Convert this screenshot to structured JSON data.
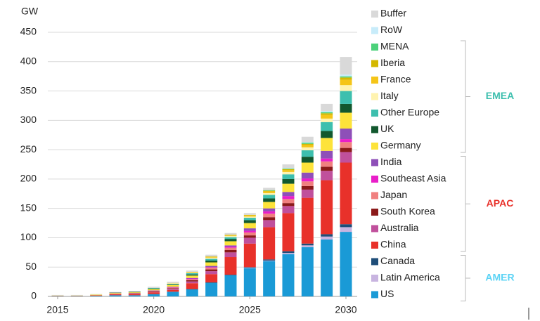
{
  "chart_data": {
    "type": "stacked_bar",
    "y_label": "GW",
    "x": [
      2015,
      2016,
      2017,
      2018,
      2019,
      2020,
      2021,
      2022,
      2023,
      2024,
      2025,
      2026,
      2027,
      2028,
      2029,
      2030
    ],
    "xticks": [
      2015,
      2020,
      2025,
      2030
    ],
    "ylim": [
      0,
      450
    ],
    "yticks": [
      0,
      50,
      100,
      150,
      200,
      250,
      300,
      350,
      400,
      450
    ],
    "grid": true,
    "series": [
      {
        "name": "US",
        "color": "#1a9ad6",
        "values": [
          0.5,
          0.5,
          1,
          2,
          2,
          4,
          8,
          12,
          23,
          36,
          48,
          60,
          72,
          84,
          97,
          110
        ]
      },
      {
        "name": "Latin America",
        "color": "#c8b4e0",
        "values": [
          0,
          0,
          0,
          0,
          0,
          0,
          0,
          0,
          0,
          0,
          1,
          1,
          2,
          3,
          5,
          8
        ]
      },
      {
        "name": "Canada",
        "color": "#1f4e79",
        "values": [
          0,
          0,
          0,
          0,
          0,
          0,
          0,
          0.5,
          1,
          1,
          1,
          2,
          3,
          3,
          4,
          5
        ]
      },
      {
        "name": "China",
        "color": "#e8312a",
        "values": [
          0.5,
          0.5,
          1,
          1.5,
          2,
          3,
          3,
          10,
          14,
          30,
          40,
          55,
          65,
          78,
          92,
          105
        ]
      },
      {
        "name": "Australia",
        "color": "#c0509c",
        "values": [
          0,
          0,
          0,
          0.5,
          1,
          1,
          2,
          3,
          5,
          8,
          10,
          12,
          12,
          14,
          16,
          18
        ]
      },
      {
        "name": "South Korea",
        "color": "#8b1a1a",
        "values": [
          0,
          0,
          0,
          0.5,
          0.5,
          1,
          1,
          2,
          3,
          4,
          4,
          5,
          5,
          6,
          7,
          7
        ]
      },
      {
        "name": "Japan",
        "color": "#f08080",
        "values": [
          0,
          0,
          0,
          0.5,
          0.5,
          1,
          1,
          2,
          3,
          4,
          5,
          6,
          7,
          8,
          9,
          10
        ]
      },
      {
        "name": "Southeast Asia",
        "color": "#e91ec9",
        "values": [
          0,
          0,
          0,
          0,
          0,
          0,
          0.5,
          1,
          1,
          2,
          3,
          4,
          5,
          5,
          5,
          5
        ]
      },
      {
        "name": "India",
        "color": "#8e4fb8",
        "values": [
          0,
          0,
          0,
          0,
          0,
          0.5,
          1,
          1,
          2,
          2,
          4,
          5,
          7,
          10,
          13,
          18
        ]
      },
      {
        "name": "Germany",
        "color": "#fde33a",
        "values": [
          0.5,
          0.5,
          1,
          1,
          1,
          2,
          3,
          4,
          6,
          7,
          9,
          11,
          14,
          17,
          22,
          27
        ]
      },
      {
        "name": "UK",
        "color": "#12582e",
        "values": [
          0,
          0,
          0,
          0.5,
          1,
          1,
          1,
          2,
          3,
          4,
          5,
          6,
          8,
          10,
          12,
          15
        ]
      },
      {
        "name": "Other Europe",
        "color": "#3dbfae",
        "values": [
          0,
          0,
          0,
          0,
          0,
          1,
          1,
          2,
          3,
          3,
          4,
          6,
          8,
          11,
          15,
          22
        ]
      },
      {
        "name": "Italy",
        "color": "#fff3b0",
        "values": [
          0,
          0,
          0,
          0,
          0,
          0,
          1,
          1,
          2,
          2,
          2,
          3,
          4,
          5,
          6,
          10
        ]
      },
      {
        "name": "France",
        "color": "#f5c518",
        "values": [
          0,
          0,
          0,
          0,
          0,
          0,
          0.5,
          1,
          1,
          1,
          2,
          3,
          3,
          4,
          6,
          9
        ]
      },
      {
        "name": "Iberia",
        "color": "#d4b800",
        "values": [
          0,
          0,
          0,
          0,
          0,
          0,
          0,
          0.5,
          1,
          1,
          1,
          1,
          2,
          2,
          3,
          4
        ]
      },
      {
        "name": "MENA",
        "color": "#4cd17a",
        "values": [
          0,
          0,
          0,
          0,
          0,
          0,
          0,
          0,
          0,
          0,
          0,
          1,
          1,
          2,
          2,
          2
        ]
      },
      {
        "name": "RoW",
        "color": "#c8ecfa",
        "values": [
          0,
          0,
          0,
          0,
          0,
          0,
          0,
          0,
          0,
          0,
          0,
          0,
          1,
          1,
          2,
          3
        ]
      },
      {
        "name": "Buffer",
        "color": "#d9d9d9",
        "values": [
          1,
          1,
          1,
          1,
          1,
          2,
          2,
          2,
          3,
          3,
          3,
          4,
          6,
          9,
          12,
          30
        ]
      }
    ],
    "groups": [
      {
        "name": "EMEA",
        "color": "#3dbfae",
        "members": [
          "Germany",
          "UK",
          "Other Europe",
          "Italy",
          "France",
          "Iberia",
          "MENA"
        ]
      },
      {
        "name": "APAC",
        "color": "#e8312a",
        "members": [
          "China",
          "Australia",
          "South Korea",
          "Japan",
          "Southeast Asia",
          "India"
        ]
      },
      {
        "name": "AMER",
        "color": "#5bd3f5",
        "members": [
          "US",
          "Latin America",
          "Canada"
        ]
      }
    ]
  }
}
